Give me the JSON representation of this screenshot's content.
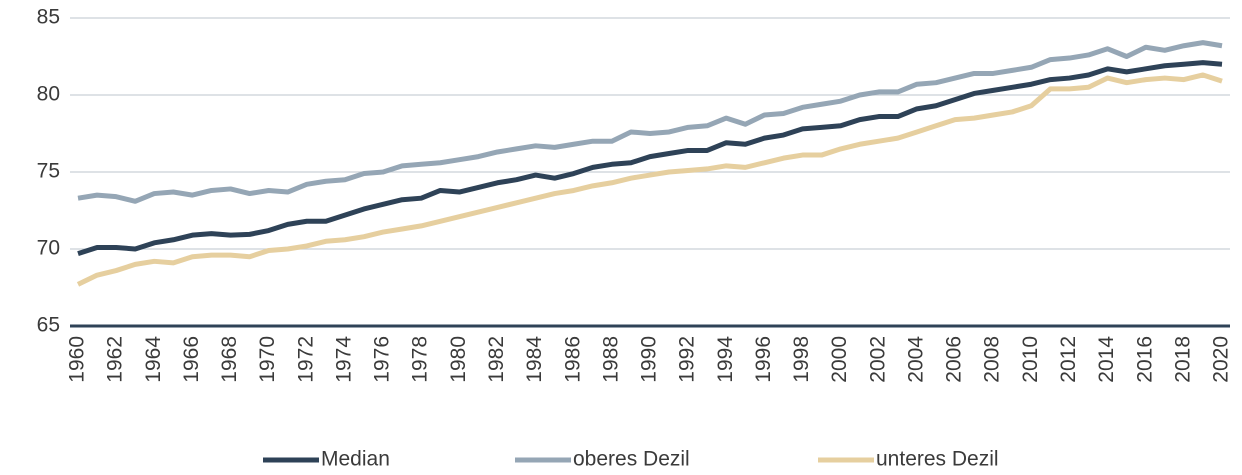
{
  "chart_data": {
    "type": "line",
    "x": [
      1960,
      1961,
      1962,
      1963,
      1964,
      1965,
      1966,
      1967,
      1968,
      1969,
      1970,
      1971,
      1972,
      1973,
      1974,
      1975,
      1976,
      1977,
      1978,
      1979,
      1980,
      1981,
      1982,
      1983,
      1984,
      1985,
      1986,
      1987,
      1988,
      1989,
      1990,
      1991,
      1992,
      1993,
      1994,
      1995,
      1996,
      1997,
      1998,
      1999,
      2000,
      2001,
      2002,
      2003,
      2004,
      2005,
      2006,
      2007,
      2008,
      2009,
      2010,
      2011,
      2012,
      2013,
      2014,
      2015,
      2016,
      2017,
      2018,
      2019,
      2020
    ],
    "series": [
      {
        "name": "Median",
        "color": "#2e4257",
        "values": [
          69.7,
          70.1,
          70.1,
          70.0,
          70.4,
          70.6,
          70.9,
          71.0,
          70.9,
          70.95,
          71.2,
          71.6,
          71.8,
          71.8,
          72.2,
          72.6,
          72.9,
          73.2,
          73.3,
          73.8,
          73.7,
          74.0,
          74.3,
          74.5,
          74.8,
          74.6,
          74.9,
          75.3,
          75.5,
          75.6,
          76.0,
          76.2,
          76.4,
          76.4,
          76.9,
          76.8,
          77.2,
          77.4,
          77.8,
          77.9,
          78.0,
          78.4,
          78.6,
          78.6,
          79.1,
          79.3,
          79.7,
          80.1,
          80.3,
          80.5,
          80.7,
          81.0,
          81.1,
          81.3,
          81.7,
          81.5,
          81.7,
          81.9,
          82.0,
          82.1,
          82.0
        ]
      },
      {
        "name": "oberes Dezil",
        "color": "#95a6b5",
        "values": [
          73.3,
          73.5,
          73.4,
          73.1,
          73.6,
          73.7,
          73.5,
          73.8,
          73.9,
          73.6,
          73.8,
          73.7,
          74.2,
          74.4,
          74.5,
          74.9,
          75.0,
          75.4,
          75.5,
          75.6,
          75.8,
          76.0,
          76.3,
          76.5,
          76.7,
          76.6,
          76.8,
          77.0,
          77.0,
          77.6,
          77.5,
          77.6,
          77.9,
          78.0,
          78.5,
          78.1,
          78.7,
          78.8,
          79.2,
          79.4,
          79.6,
          80.0,
          80.2,
          80.2,
          80.7,
          80.8,
          81.1,
          81.4,
          81.4,
          81.6,
          81.8,
          82.3,
          82.4,
          82.6,
          83.0,
          82.5,
          83.1,
          82.9,
          83.2,
          83.4,
          83.2
        ]
      },
      {
        "name": "unteres Dezil",
        "color": "#e6cf9f",
        "values": [
          67.7,
          68.3,
          68.6,
          69.0,
          69.2,
          69.1,
          69.5,
          69.6,
          69.6,
          69.5,
          69.9,
          70.0,
          70.2,
          70.5,
          70.6,
          70.8,
          71.1,
          71.3,
          71.5,
          71.8,
          72.1,
          72.4,
          72.7,
          73.0,
          73.3,
          73.6,
          73.8,
          74.1,
          74.3,
          74.6,
          74.8,
          75.0,
          75.1,
          75.2,
          75.4,
          75.3,
          75.6,
          75.9,
          76.1,
          76.1,
          76.5,
          76.8,
          77.0,
          77.2,
          77.6,
          78.0,
          78.4,
          78.5,
          78.7,
          78.9,
          79.3,
          80.4,
          80.4,
          80.5,
          81.1,
          80.8,
          81.0,
          81.1,
          81.0,
          81.3,
          80.9
        ]
      }
    ],
    "xlim": [
      1960,
      2020
    ],
    "xticks": [
      1960,
      1962,
      1964,
      1966,
      1968,
      1970,
      1972,
      1974,
      1976,
      1978,
      1980,
      1982,
      1984,
      1986,
      1988,
      1990,
      1992,
      1994,
      1996,
      1998,
      2000,
      2002,
      2004,
      2006,
      2008,
      2010,
      2012,
      2014,
      2016,
      2018,
      2020
    ],
    "ylim": [
      65,
      85
    ],
    "yticks": [
      65,
      70,
      75,
      80,
      85
    ],
    "grid": true,
    "legend": "bottom"
  }
}
